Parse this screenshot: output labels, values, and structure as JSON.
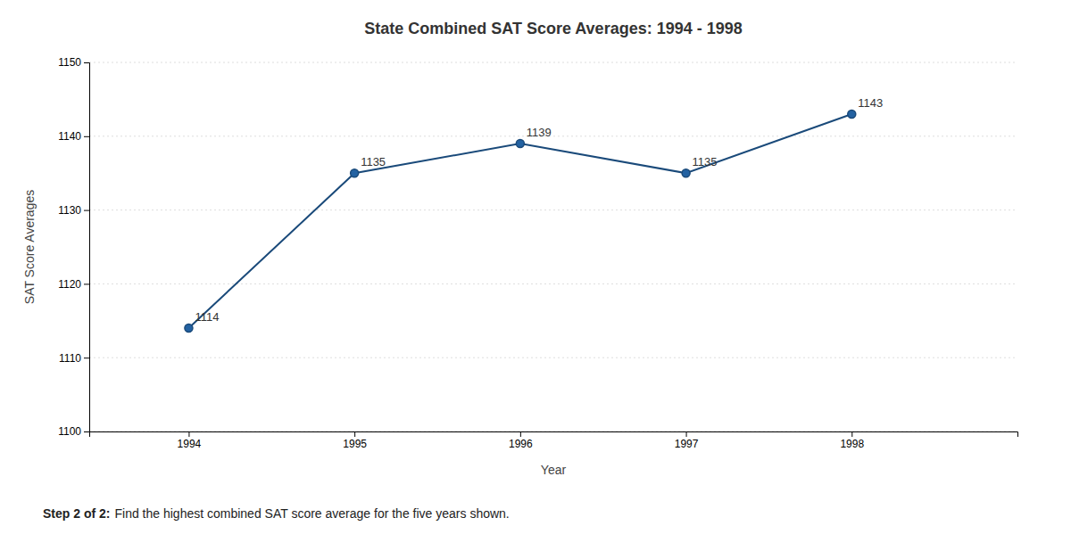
{
  "chart_data": {
    "type": "line",
    "title": "State Combined SAT Score Averages: 1994 - 1998",
    "x": [
      1994,
      1995,
      1996,
      1997,
      1998
    ],
    "values": [
      1114,
      1135,
      1139,
      1135,
      1143
    ],
    "xlabel": "Year",
    "ylabel": "SAT Score Averages",
    "xlim": [
      1993.4,
      1999.0
    ],
    "xticks": [
      1994,
      1995,
      1996,
      1997,
      1998
    ],
    "ylim": [
      1100,
      1150
    ],
    "yticks": [
      1100,
      1110,
      1120,
      1130,
      1140,
      1150
    ],
    "grid": true,
    "color": "#1a4a7a",
    "marker": "circle",
    "data_labels": true,
    "footer": [
      "Step 2 of 2:",
      "Find the highest combined SAT score average for the five years shown."
    ]
  }
}
